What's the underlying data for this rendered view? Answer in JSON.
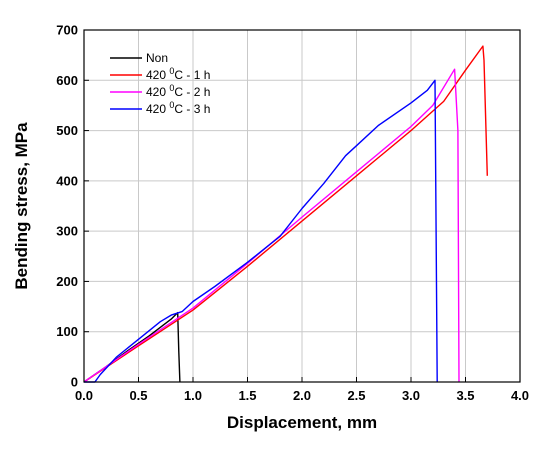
{
  "chart_data": {
    "type": "line",
    "title": "",
    "xlabel": "Displacement, mm",
    "ylabel": "Bending stress, MPa",
    "xlim": [
      0.0,
      4.0
    ],
    "ylim": [
      0,
      700
    ],
    "x_ticks": [
      "0.0",
      "0.5",
      "1.0",
      "1.5",
      "2.0",
      "2.5",
      "3.0",
      "3.5",
      "4.0"
    ],
    "y_ticks": [
      "0",
      "100",
      "200",
      "300",
      "400",
      "500",
      "600",
      "700"
    ],
    "grid": true,
    "legend_position": "top-left",
    "series": [
      {
        "name": "Non",
        "color": "#000000",
        "x": [
          0.0,
          0.2,
          0.4,
          0.6,
          0.8,
          0.86,
          0.87,
          0.88
        ],
        "y": [
          0,
          30,
          62,
          92,
          125,
          138,
          60,
          0
        ]
      },
      {
        "name": "420 °C - 1 h",
        "label_parts": [
          "420 ",
          "0",
          "C - 1 h"
        ],
        "color": "#ff0000",
        "x": [
          0.0,
          0.5,
          1.0,
          1.5,
          2.0,
          2.5,
          3.0,
          3.3,
          3.5,
          3.66,
          3.67,
          3.7
        ],
        "y": [
          0,
          72,
          143,
          230,
          320,
          410,
          500,
          558,
          620,
          668,
          640,
          410
        ]
      },
      {
        "name": "420 °C - 2 h",
        "label_parts": [
          "420 ",
          "0",
          "C - 2 h"
        ],
        "color": "#ff00ff",
        "x": [
          0.0,
          0.5,
          1.0,
          1.5,
          2.0,
          2.5,
          3.0,
          3.2,
          3.4,
          3.43,
          3.44
        ],
        "y": [
          0,
          75,
          147,
          236,
          328,
          418,
          508,
          550,
          622,
          500,
          0
        ]
      },
      {
        "name": "420 °C - 3 h",
        "label_parts": [
          "420 ",
          "0",
          "C - 3 h"
        ],
        "color": "#0000ff",
        "x": [
          0.0,
          0.1,
          0.15,
          0.3,
          0.5,
          0.7,
          0.8,
          0.9,
          1.0,
          1.2,
          1.5,
          1.8,
          2.0,
          2.2,
          2.4,
          2.5,
          2.7,
          3.0,
          3.15,
          3.22,
          3.23,
          3.24
        ],
        "y": [
          0,
          0,
          15,
          50,
          85,
          120,
          133,
          140,
          160,
          190,
          238,
          290,
          345,
          395,
          450,
          470,
          510,
          555,
          580,
          600,
          300,
          0
        ]
      }
    ]
  }
}
